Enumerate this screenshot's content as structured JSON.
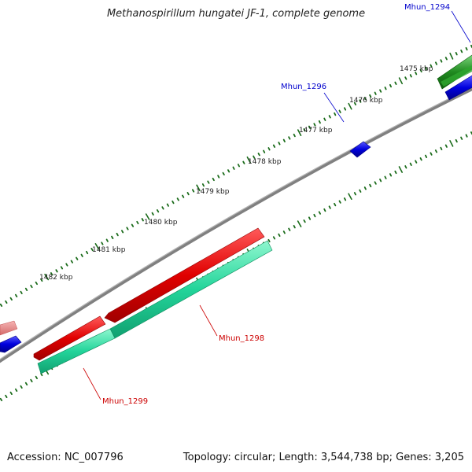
{
  "title": "Methanospirillum hungatei JF-1, complete genome",
  "footer": {
    "accession": "Accession: NC_007796",
    "summary": "Topology: circular; Length: 3,544,738 bp; Genes: 3,205"
  },
  "ticks": [
    {
      "label": "1475 kbp"
    },
    {
      "label": "1476 kbp"
    },
    {
      "label": "1477 kbp"
    },
    {
      "label": "1478 kbp"
    },
    {
      "label": "1479 kbp"
    },
    {
      "label": "1480 kbp"
    },
    {
      "label": "1481 kbp"
    },
    {
      "label": "1482 kbp"
    }
  ],
  "genes": [
    {
      "name": "Mhun_1294",
      "color": "#0000cc"
    },
    {
      "name": "Mhun_1296",
      "color": "#0000cc"
    },
    {
      "name": "Mhun_1298",
      "color": "#cc0000"
    },
    {
      "name": "Mhun_1299",
      "color": "#cc0000"
    }
  ],
  "colors": {
    "backbone": "#808080",
    "tick": "#1a6b1a",
    "gene_red": "#e00000",
    "gene_teal": "#22d49a",
    "gene_blue": "#0000dd",
    "gene_green": "#1f8a1f",
    "gene_pink": "#e07a7a"
  }
}
